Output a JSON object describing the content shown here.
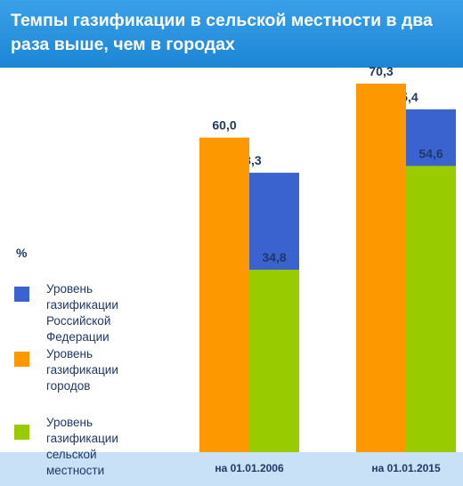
{
  "title": "Темпы газификации в сельской местности в два раза выше, чем в городах",
  "unit_label": "%",
  "colors": {
    "banner": "#1c86d6",
    "axis_band": "#c9e1f7",
    "label_text": "#1f3864"
  },
  "chart_data": {
    "type": "bar",
    "categories": [
      "на 01.01.2006",
      "на 01.01.2015"
    ],
    "series": [
      {
        "name": "Уровень газификации Российской Федерации",
        "color": "#3a63cf",
        "values": [
          53.3,
          65.4
        ],
        "labels": [
          "53,3",
          "65,4"
        ]
      },
      {
        "name": "Уровень газификации городов",
        "color": "#fd9801",
        "values": [
          60.0,
          70.3
        ],
        "labels": [
          "60,0",
          "70,3"
        ]
      },
      {
        "name": "Уровень газификации сельской местности",
        "color": "#98cb00",
        "values": [
          34.8,
          54.6
        ],
        "labels": [
          "34,8",
          "54,6"
        ]
      }
    ],
    "legend": {
      "position": "left",
      "items": [
        {
          "text": "Уровень\nгазификации\nРоссийской Федерации",
          "color": "#3a63cf"
        },
        {
          "text": "Уровень газификации\nгородов",
          "color": "#fd9801"
        },
        {
          "text": "Уровень газификации\nсельской местности",
          "color": "#98cb00"
        }
      ]
    },
    "grid": false
  }
}
